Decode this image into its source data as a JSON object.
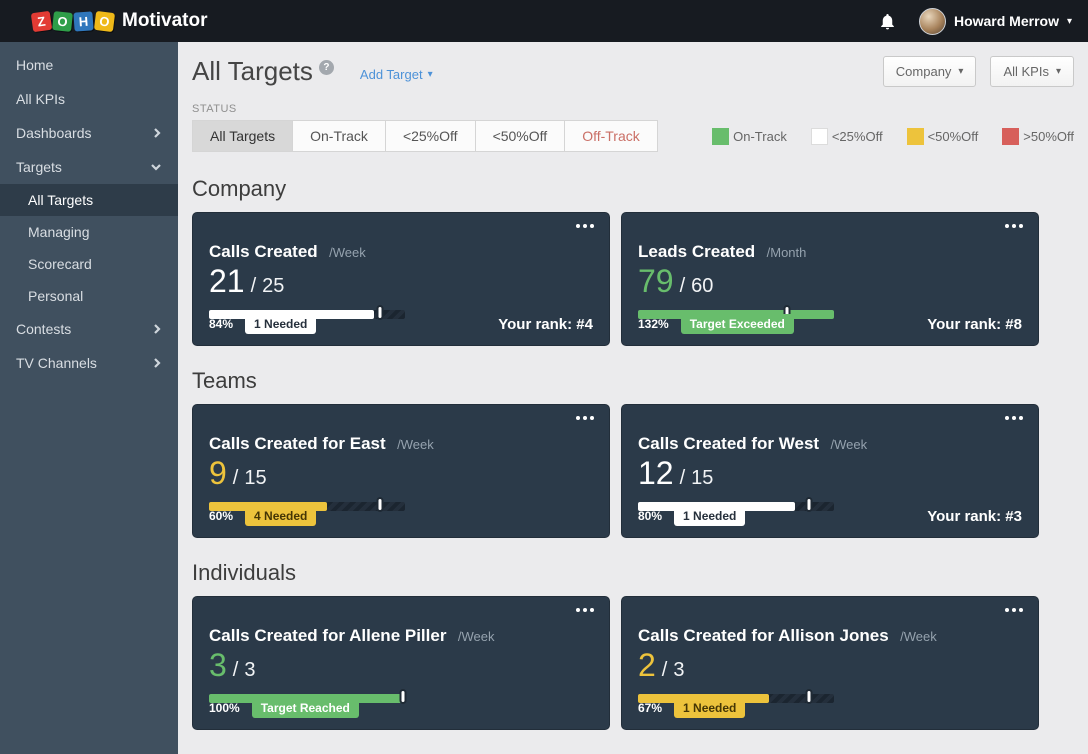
{
  "topbar": {
    "brand": "Motivator",
    "logo_tiles": [
      {
        "letter": "Z",
        "color": "#e23b34"
      },
      {
        "letter": "O",
        "color": "#2f9e49"
      },
      {
        "letter": "H",
        "color": "#2f77bc"
      },
      {
        "letter": "O",
        "color": "#efb919"
      }
    ],
    "user_name": "Howard Merrow"
  },
  "sidebar": {
    "items": [
      {
        "label": "Home"
      },
      {
        "label": "All KPIs"
      },
      {
        "label": "Dashboards",
        "chevron": "right"
      },
      {
        "label": "Targets",
        "chevron": "down"
      },
      {
        "label": "All Targets",
        "sub": true,
        "selected": true
      },
      {
        "label": "Managing",
        "sub": true
      },
      {
        "label": "Scorecard",
        "sub": true
      },
      {
        "label": "Personal",
        "sub": true
      },
      {
        "label": "Contests",
        "chevron": "right"
      },
      {
        "label": "TV Channels",
        "chevron": "right"
      }
    ]
  },
  "header": {
    "title": "All Targets",
    "help": "?",
    "add_target_label": "Add Target",
    "scope_filter_label": "Company",
    "kpi_filter_label": "All KPIs"
  },
  "status_bar": {
    "label": "STATUS",
    "buttons": [
      {
        "label": "All Targets",
        "selected": true
      },
      {
        "label": "On-Track"
      },
      {
        "label": "<25%Off"
      },
      {
        "label": "<50%Off"
      },
      {
        "label": "Off-Track",
        "danger": true
      }
    ],
    "legend": [
      {
        "label": "On-Track",
        "color": "#68bd6c"
      },
      {
        "label": "<25%Off",
        "color": "#ffffff"
      },
      {
        "label": "<50%Off",
        "color": "#edc33c"
      },
      {
        "label": ">50%Off",
        "color": "#d75f5b"
      }
    ]
  },
  "sections": [
    {
      "title": "Company",
      "cards": [
        {
          "title": "Calls Created",
          "period": "/Week",
          "value": "21",
          "target": "25",
          "value_color": "#ffffff",
          "fill_color": "#ffffff",
          "fill_pct": 84,
          "marker_pct": 87,
          "pct_label": "84%",
          "badge": {
            "label": "1 Needed",
            "variant": "white"
          },
          "rank": "Your rank: #4"
        },
        {
          "title": "Leads Created",
          "period": "/Month",
          "value": "79",
          "target": "60",
          "value_color": "#68bd6c",
          "fill_color": "#68bd6c",
          "fill_pct": 100,
          "marker_pct": 76,
          "pct_label": "132%",
          "badge": {
            "label": "Target Exceeded",
            "variant": "green"
          },
          "rank": "Your rank: #8"
        }
      ]
    },
    {
      "title": "Teams",
      "cards": [
        {
          "title": "Calls Created for East",
          "period": "/Week",
          "value": "9",
          "target": "15",
          "value_color": "#edc33c",
          "fill_color": "#edc33c",
          "fill_pct": 60,
          "marker_pct": 87,
          "pct_label": "60%",
          "badge": {
            "label": "4 Needed",
            "variant": "yellow"
          },
          "rank": null
        },
        {
          "title": "Calls Created for West",
          "period": "/Week",
          "value": "12",
          "target": "15",
          "value_color": "#ffffff",
          "fill_color": "#ffffff",
          "fill_pct": 80,
          "marker_pct": 87,
          "pct_label": "80%",
          "badge": {
            "label": "1 Needed",
            "variant": "white"
          },
          "rank": "Your rank: #3"
        }
      ]
    },
    {
      "title": "Individuals",
      "cards": [
        {
          "title": "Calls Created for Allene Piller",
          "period": "/Week",
          "value": "3",
          "target": "3",
          "value_color": "#68bd6c",
          "fill_color": "#68bd6c",
          "fill_pct": 100,
          "marker_pct": 99,
          "pct_label": "100%",
          "badge": {
            "label": "Target Reached",
            "variant": "green"
          },
          "rank": null
        },
        {
          "title": "Calls Created for Allison Jones",
          "period": "/Week",
          "value": "2",
          "target": "3",
          "value_color": "#edc33c",
          "fill_color": "#edc33c",
          "fill_pct": 67,
          "marker_pct": 87,
          "pct_label": "67%",
          "badge": {
            "label": "1 Needed",
            "variant": "yellow"
          },
          "rank": null
        }
      ]
    }
  ]
}
